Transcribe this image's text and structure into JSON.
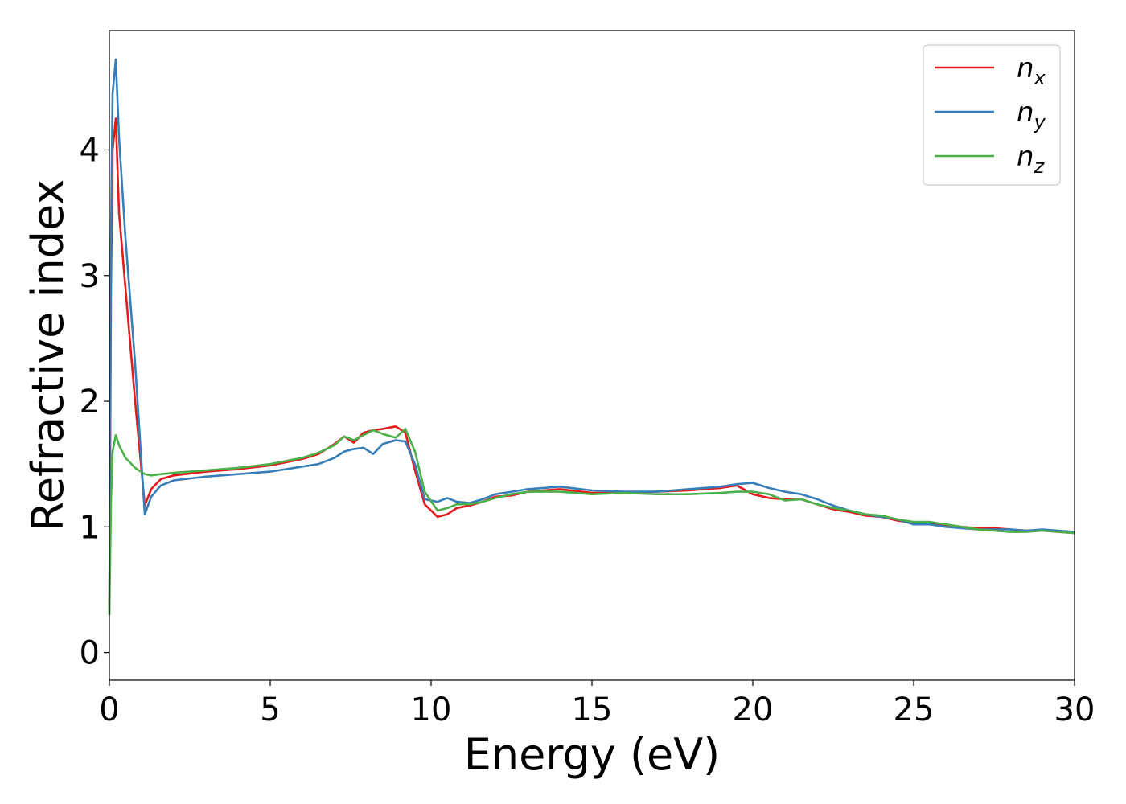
{
  "chart_data": {
    "type": "line",
    "xlabel": "Energy (eV)",
    "ylabel": "Refractive index",
    "xlim": [
      0,
      30
    ],
    "ylim": [
      -0.22,
      4.95
    ],
    "xticks": [
      0,
      5,
      10,
      15,
      20,
      25,
      30
    ],
    "yticks": [
      0,
      1,
      2,
      3,
      4
    ],
    "grid": false,
    "legend": "top-right",
    "series": [
      {
        "name": "n",
        "subscript": "x",
        "color": "#e41a1c",
        "x": [
          0,
          0.05,
          0.1,
          0.2,
          0.3,
          0.5,
          0.8,
          1.1,
          1.3,
          1.6,
          2,
          3,
          4,
          5,
          6,
          6.5,
          7,
          7.3,
          7.6,
          7.9,
          8.2,
          8.5,
          8.9,
          9.2,
          9.5,
          9.8,
          10.2,
          10.5,
          10.8,
          11.2,
          11.6,
          12,
          12.5,
          13,
          13.5,
          14,
          15,
          16,
          17,
          18,
          19,
          19.5,
          20,
          20.5,
          21,
          21.5,
          22,
          22.5,
          23,
          23.5,
          24,
          24.5,
          25,
          25.5,
          26,
          26.5,
          27,
          27.5,
          28,
          28.5,
          29,
          29.5,
          30
        ],
        "values": [
          0.35,
          2.9,
          4.0,
          4.25,
          3.5,
          2.9,
          2.0,
          1.17,
          1.3,
          1.38,
          1.41,
          1.44,
          1.46,
          1.49,
          1.54,
          1.58,
          1.66,
          1.72,
          1.67,
          1.75,
          1.77,
          1.78,
          1.8,
          1.75,
          1.45,
          1.18,
          1.08,
          1.1,
          1.15,
          1.17,
          1.2,
          1.24,
          1.25,
          1.28,
          1.29,
          1.3,
          1.27,
          1.27,
          1.28,
          1.29,
          1.31,
          1.33,
          1.26,
          1.23,
          1.22,
          1.22,
          1.18,
          1.14,
          1.12,
          1.09,
          1.08,
          1.05,
          1.03,
          1.03,
          1.01,
          1.0,
          0.99,
          0.99,
          0.98,
          0.97,
          0.97,
          0.96,
          0.95
        ]
      },
      {
        "name": "n",
        "subscript": "y",
        "color": "#377eb8",
        "x": [
          0,
          0.05,
          0.1,
          0.2,
          0.3,
          0.5,
          0.8,
          1.1,
          1.3,
          1.6,
          2,
          3,
          4,
          5,
          6,
          6.5,
          7,
          7.3,
          7.6,
          7.9,
          8.2,
          8.5,
          8.9,
          9.2,
          9.5,
          9.8,
          10.2,
          10.5,
          10.8,
          11.2,
          11.6,
          12,
          12.5,
          13,
          13.5,
          14,
          15,
          16,
          17,
          18,
          19,
          19.5,
          20,
          20.5,
          21,
          21.5,
          22,
          22.5,
          23,
          23.5,
          24,
          24.5,
          25,
          25.5,
          26,
          26.5,
          27,
          27.5,
          28,
          28.5,
          29,
          29.5,
          30
        ],
        "values": [
          0.3,
          3.3,
          4.45,
          4.72,
          4.1,
          3.3,
          2.3,
          1.1,
          1.24,
          1.33,
          1.37,
          1.4,
          1.42,
          1.44,
          1.48,
          1.5,
          1.55,
          1.6,
          1.62,
          1.63,
          1.58,
          1.66,
          1.69,
          1.68,
          1.5,
          1.22,
          1.2,
          1.23,
          1.2,
          1.19,
          1.22,
          1.26,
          1.28,
          1.3,
          1.31,
          1.32,
          1.29,
          1.28,
          1.28,
          1.3,
          1.32,
          1.34,
          1.35,
          1.31,
          1.28,
          1.26,
          1.22,
          1.17,
          1.13,
          1.1,
          1.08,
          1.06,
          1.02,
          1.02,
          1.0,
          0.99,
          0.98,
          0.98,
          0.98,
          0.97,
          0.98,
          0.97,
          0.96
        ]
      },
      {
        "name": "n",
        "subscript": "z",
        "color": "#4daf4a",
        "x": [
          0,
          0.05,
          0.1,
          0.2,
          0.3,
          0.5,
          0.8,
          1.1,
          1.3,
          1.6,
          2,
          3,
          4,
          5,
          6,
          6.5,
          7,
          7.3,
          7.6,
          7.9,
          8.2,
          8.5,
          8.9,
          9.2,
          9.5,
          9.8,
          10.2,
          10.5,
          10.8,
          11.2,
          11.6,
          12,
          12.5,
          13,
          13.5,
          14,
          15,
          16,
          17,
          18,
          19,
          19.5,
          20,
          20.5,
          21,
          21.5,
          22,
          22.5,
          23,
          23.5,
          24,
          24.5,
          25,
          25.5,
          26,
          26.5,
          27,
          27.5,
          28,
          28.5,
          29,
          29.5,
          30
        ],
        "values": [
          0.3,
          1.2,
          1.6,
          1.73,
          1.65,
          1.55,
          1.47,
          1.42,
          1.41,
          1.42,
          1.43,
          1.45,
          1.47,
          1.5,
          1.55,
          1.59,
          1.65,
          1.72,
          1.69,
          1.73,
          1.77,
          1.74,
          1.71,
          1.78,
          1.6,
          1.28,
          1.13,
          1.15,
          1.18,
          1.18,
          1.2,
          1.23,
          1.26,
          1.28,
          1.28,
          1.28,
          1.26,
          1.27,
          1.26,
          1.26,
          1.27,
          1.28,
          1.28,
          1.26,
          1.21,
          1.22,
          1.18,
          1.15,
          1.13,
          1.1,
          1.09,
          1.06,
          1.04,
          1.04,
          1.02,
          1.0,
          0.98,
          0.97,
          0.96,
          0.96,
          0.97,
          0.96,
          0.95
        ]
      }
    ]
  }
}
